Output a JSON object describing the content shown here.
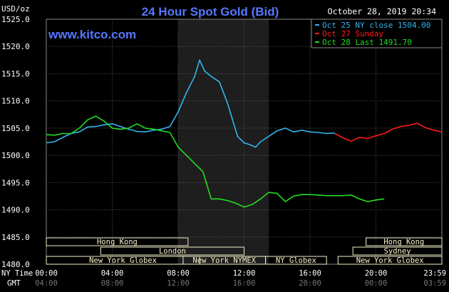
{
  "chart_data": {
    "type": "line",
    "title": "24 Hour Spot Gold (Bid)",
    "watermark": "www.kitco.com",
    "timestamp": "October 28, 2019 20:34",
    "ylabel": "USD/oz",
    "ylim": [
      1480,
      1525
    ],
    "y_ticks": [
      "1480.0",
      "1485.0",
      "1490.0",
      "1495.0",
      "1500.0",
      "1505.0",
      "1510.0",
      "1515.0",
      "1520.0",
      "1525.0"
    ],
    "x_ticks_ny": [
      "00:00",
      "04:00",
      "08:00",
      "12:00",
      "16:00",
      "20:00",
      "23:59"
    ],
    "x_ticks_gmt": [
      "04:00",
      "08:00",
      "12:00",
      "16:00",
      "20:00",
      "00:00",
      "03:59"
    ],
    "x_axis_labels": {
      "ny": "NY Time",
      "gmt": "GMT"
    },
    "grid": true,
    "legend_position": "top-right",
    "shaded_region_hours": [
      8.0,
      13.5
    ],
    "colors": {
      "background": "#000000",
      "plot_grid": "#555555",
      "oct25": "#33b5f0",
      "oct27": "#ff1a1a",
      "oct28": "#22dd22",
      "title": "#5577ff",
      "watermark": "#5577ff",
      "session_bar": "#f5f0c8"
    },
    "series": [
      {
        "name": "Oct 25 NY close 1504.00",
        "color": "#33b5f0",
        "x": [
          0,
          0.5,
          1,
          1.5,
          2,
          2.5,
          3,
          3.5,
          4,
          4.5,
          5,
          5.5,
          6,
          6.5,
          7,
          7.5,
          8,
          8.5,
          9,
          9.3,
          9.6,
          10,
          10.5,
          11,
          11.3,
          11.6,
          12,
          12.3,
          12.7,
          13,
          13.5,
          14,
          14.5,
          15,
          15.5,
          16,
          16.5,
          17,
          17.5
        ],
        "y": [
          1502.3,
          1502.5,
          1503.3,
          1504.0,
          1504.3,
          1505.2,
          1505.3,
          1505.6,
          1505.8,
          1505.3,
          1504.8,
          1504.4,
          1504.3,
          1504.6,
          1504.8,
          1505.3,
          1508.0,
          1511.5,
          1514.5,
          1517.5,
          1515.5,
          1514.5,
          1513.5,
          1509.5,
          1506.5,
          1503.5,
          1502.3,
          1502.0,
          1501.5,
          1502.5,
          1503.5,
          1504.5,
          1505.0,
          1504.3,
          1504.6,
          1504.3,
          1504.2,
          1504.0,
          1504.1
        ]
      },
      {
        "name": "Oct 27 Sunday",
        "color": "#ff1a1a",
        "x": [
          17.5,
          18,
          18.5,
          19,
          19.5,
          20,
          20.5,
          21,
          21.5,
          22,
          22.5,
          23,
          23.5,
          24
        ],
        "y": [
          1504.0,
          1503.2,
          1502.6,
          1503.3,
          1503.1,
          1503.6,
          1504.0,
          1504.8,
          1505.3,
          1505.5,
          1505.9,
          1505.1,
          1504.6,
          1504.3
        ]
      },
      {
        "name": "Oct 28 Last 1491.70",
        "color": "#22dd22",
        "x": [
          0,
          0.5,
          1,
          1.5,
          2,
          2.5,
          3,
          3.5,
          4,
          4.5,
          5,
          5.5,
          6,
          6.5,
          7,
          7.5,
          8,
          8.5,
          9,
          9.5,
          10,
          10.5,
          11,
          11.5,
          12,
          12.5,
          13,
          13.5,
          14,
          14.5,
          15,
          15.5,
          16,
          16.5,
          17,
          17.5,
          18,
          18.5,
          19,
          19.5,
          20,
          20.5
        ],
        "y": [
          1503.8,
          1503.7,
          1504.0,
          1504.0,
          1505.0,
          1506.5,
          1507.2,
          1506.3,
          1505.0,
          1504.8,
          1505.0,
          1505.8,
          1505.0,
          1504.8,
          1504.5,
          1504.2,
          1501.5,
          1500.0,
          1498.5,
          1497.0,
          1492.0,
          1492.0,
          1491.7,
          1491.2,
          1490.5,
          1491.0,
          1492.0,
          1493.2,
          1493.0,
          1491.5,
          1492.5,
          1492.8,
          1492.8,
          1492.7,
          1492.6,
          1492.6,
          1492.6,
          1492.7,
          1492.0,
          1491.5,
          1491.8,
          1492.0
        ]
      }
    ],
    "sessions": [
      {
        "name": "Hong Kong",
        "start": -2,
        "end": 8.6
      },
      {
        "name": "London",
        "start": 3.3,
        "end": 12.0
      },
      {
        "name": "New York Globex",
        "start": -2,
        "end": 9.3
      },
      {
        "name": "New York NYMEX",
        "start": 8.3,
        "end": 13.3
      },
      {
        "name": "NY Globex",
        "start": 13.3,
        "end": 17.0
      },
      {
        "name": "Hong Kong",
        "start": 19.4,
        "end": 26
      },
      {
        "name": "Sydney",
        "start": 18.6,
        "end": 26
      },
      {
        "name": "New York Globex",
        "start": 17.7,
        "end": 26
      }
    ]
  }
}
